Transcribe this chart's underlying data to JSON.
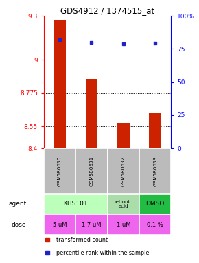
{
  "title": "GDS4912 / 1374515_at",
  "samples": [
    "GSM580630",
    "GSM580631",
    "GSM580632",
    "GSM580633"
  ],
  "bar_values": [
    9.27,
    8.865,
    8.575,
    8.64
  ],
  "bar_bottom": 8.4,
  "dot_values": [
    82,
    80,
    79,
    79.5
  ],
  "ylim_left": [
    8.4,
    9.3
  ],
  "ylim_right": [
    0,
    100
  ],
  "yticks_left": [
    8.4,
    8.55,
    8.775,
    9.0,
    9.3
  ],
  "ytick_labels_left": [
    "8.4",
    "8.55",
    "8.775",
    "9",
    "9.3"
  ],
  "yticks_right": [
    0,
    25,
    50,
    75,
    100
  ],
  "ytick_labels_right": [
    "0",
    "25",
    "50",
    "75",
    "100%"
  ],
  "hlines": [
    9.0,
    8.775,
    8.55
  ],
  "bar_color": "#cc2200",
  "dot_color": "#2222cc",
  "dose_row": [
    "5 uM",
    "1.7 uM",
    "1 uM",
    "0.1 %"
  ],
  "dose_color": "#ee66ee",
  "sample_bg": "#bbbbbb",
  "khs_color": "#bbffbb",
  "retinoic_color": "#aaddaa",
  "dmso_color": "#22bb44",
  "legend_red": "transformed count",
  "legend_blue": "percentile rank within the sample"
}
